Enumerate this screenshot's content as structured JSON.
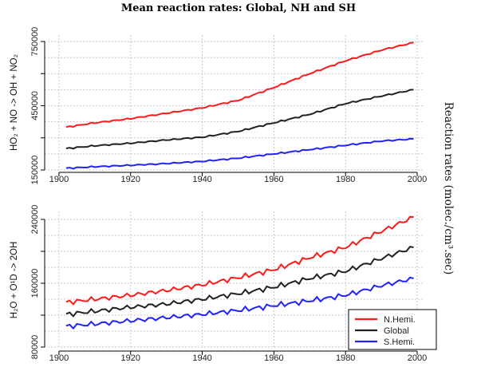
{
  "figure": {
    "title": "Mean reaction rates: Global, NH and SH",
    "right_label": "Reaction rates (molec./cm³.sec)"
  },
  "colors": {
    "nh": "#ff1a1a",
    "global": "#222222",
    "sh": "#2222ff",
    "grid": "#bbbbbb"
  },
  "chart_data": [
    {
      "type": "line",
      "ylabel": "HO₂ + NO -> OH + NO₂",
      "xlim": [
        1896,
        2002
      ],
      "ylim": [
        150000,
        780000
      ],
      "xticks": [
        1900,
        1920,
        1940,
        1960,
        1980,
        2000
      ],
      "yticks": [
        150000,
        300000,
        450000,
        600000,
        750000
      ],
      "ytick_labels": [
        "150000",
        "",
        "450000",
        "",
        "750000"
      ],
      "x": [
        1902,
        1910,
        1920,
        1930,
        1940,
        1950,
        1960,
        1970,
        1980,
        1990,
        1999
      ],
      "series": [
        {
          "name": "N.Hemi.",
          "color": "nh",
          "values": [
            350000,
            370000,
            390000,
            415000,
            440000,
            475000,
            535000,
            600000,
            660000,
            710000,
            745000
          ]
        },
        {
          "name": "Global",
          "color": "global",
          "values": [
            250000,
            263000,
            275000,
            290000,
            303000,
            330000,
            370000,
            410000,
            460000,
            495000,
            525000
          ]
        },
        {
          "name": "S.Hemi.",
          "color": "sh",
          "values": [
            158000,
            165000,
            172000,
            180000,
            190000,
            205000,
            225000,
            245000,
            265000,
            285000,
            295000
          ]
        }
      ]
    },
    {
      "type": "line",
      "ylabel": "H₂O + O¹D -> 2OH",
      "xlim": [
        1896,
        2002
      ],
      "ylim": [
        78000,
        250000
      ],
      "xticks": [
        1900,
        1920,
        1940,
        1960,
        1980,
        2000
      ],
      "yticks": [
        80000,
        120000,
        160000,
        200000,
        240000
      ],
      "ytick_labels": [
        "80000",
        "",
        "160000",
        "",
        "240000"
      ],
      "x": [
        1902,
        1910,
        1920,
        1930,
        1940,
        1950,
        1960,
        1970,
        1980,
        1990,
        1999
      ],
      "series": [
        {
          "name": "N.Hemi.",
          "color": "nh",
          "values": [
            136000,
            140000,
            145000,
            151000,
            158000,
            167000,
            177000,
            192000,
            205000,
            225000,
            243000
          ]
        },
        {
          "name": "Global",
          "color": "global",
          "values": [
            121000,
            125000,
            130000,
            134000,
            140000,
            147000,
            155000,
            166000,
            175000,
            191000,
            205000
          ]
        },
        {
          "name": "S.Hemi.",
          "color": "sh",
          "values": [
            106000,
            109000,
            113000,
            117000,
            121000,
            126000,
            132000,
            138000,
            145000,
            157000,
            166000
          ]
        }
      ]
    }
  ],
  "legend": {
    "placement": "bottom-right of lower panel",
    "entries": [
      {
        "label": "N.Hemi.",
        "color": "nh"
      },
      {
        "label": "Global",
        "color": "global"
      },
      {
        "label": "S.Hemi.",
        "color": "sh"
      }
    ]
  }
}
